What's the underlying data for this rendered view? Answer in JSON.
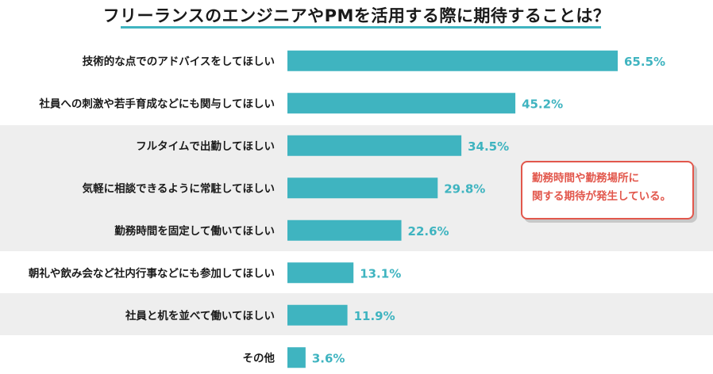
{
  "chart_data": {
    "type": "bar",
    "orientation": "horizontal",
    "title": "フリーランスのエンジニアやPMを活用する際に期待することは？",
    "categories": [
      "技術的な点でのアドバイスをしてほしい",
      "社員への刺激や若手育成などにも関与してほしい",
      "フルタイムで出勤してほしい",
      "気軽に相談できるように常駐してほしい",
      "勤務時間を固定して働いてほしい",
      "朝礼や飲み会など社内行事などにも参加してほしい",
      "社員と机を並べて働いてほしい",
      "その他"
    ],
    "values": [
      65.5,
      45.2,
      34.5,
      29.8,
      22.6,
      13.1,
      11.9,
      3.6
    ],
    "value_labels": [
      "65.5%",
      "45.2%",
      "34.5%",
      "29.8%",
      "22.6%",
      "13.1%",
      "11.9%",
      "3.6%"
    ],
    "unit": "%",
    "xlim": [
      0,
      100
    ],
    "grid": false,
    "legend": "none",
    "highlighted_categories": [
      2,
      3,
      4,
      6
    ],
    "annotation": {
      "lines": [
        "勤務時間や勤務場所に",
        "関する期待が発生している。"
      ]
    }
  },
  "colors": {
    "bar": "#3fb4c0",
    "value_label": "#3fb4c0",
    "highlight_band": "#eeeeee",
    "annotation": "#e2574c",
    "title_underline": "#3fb4c0"
  }
}
